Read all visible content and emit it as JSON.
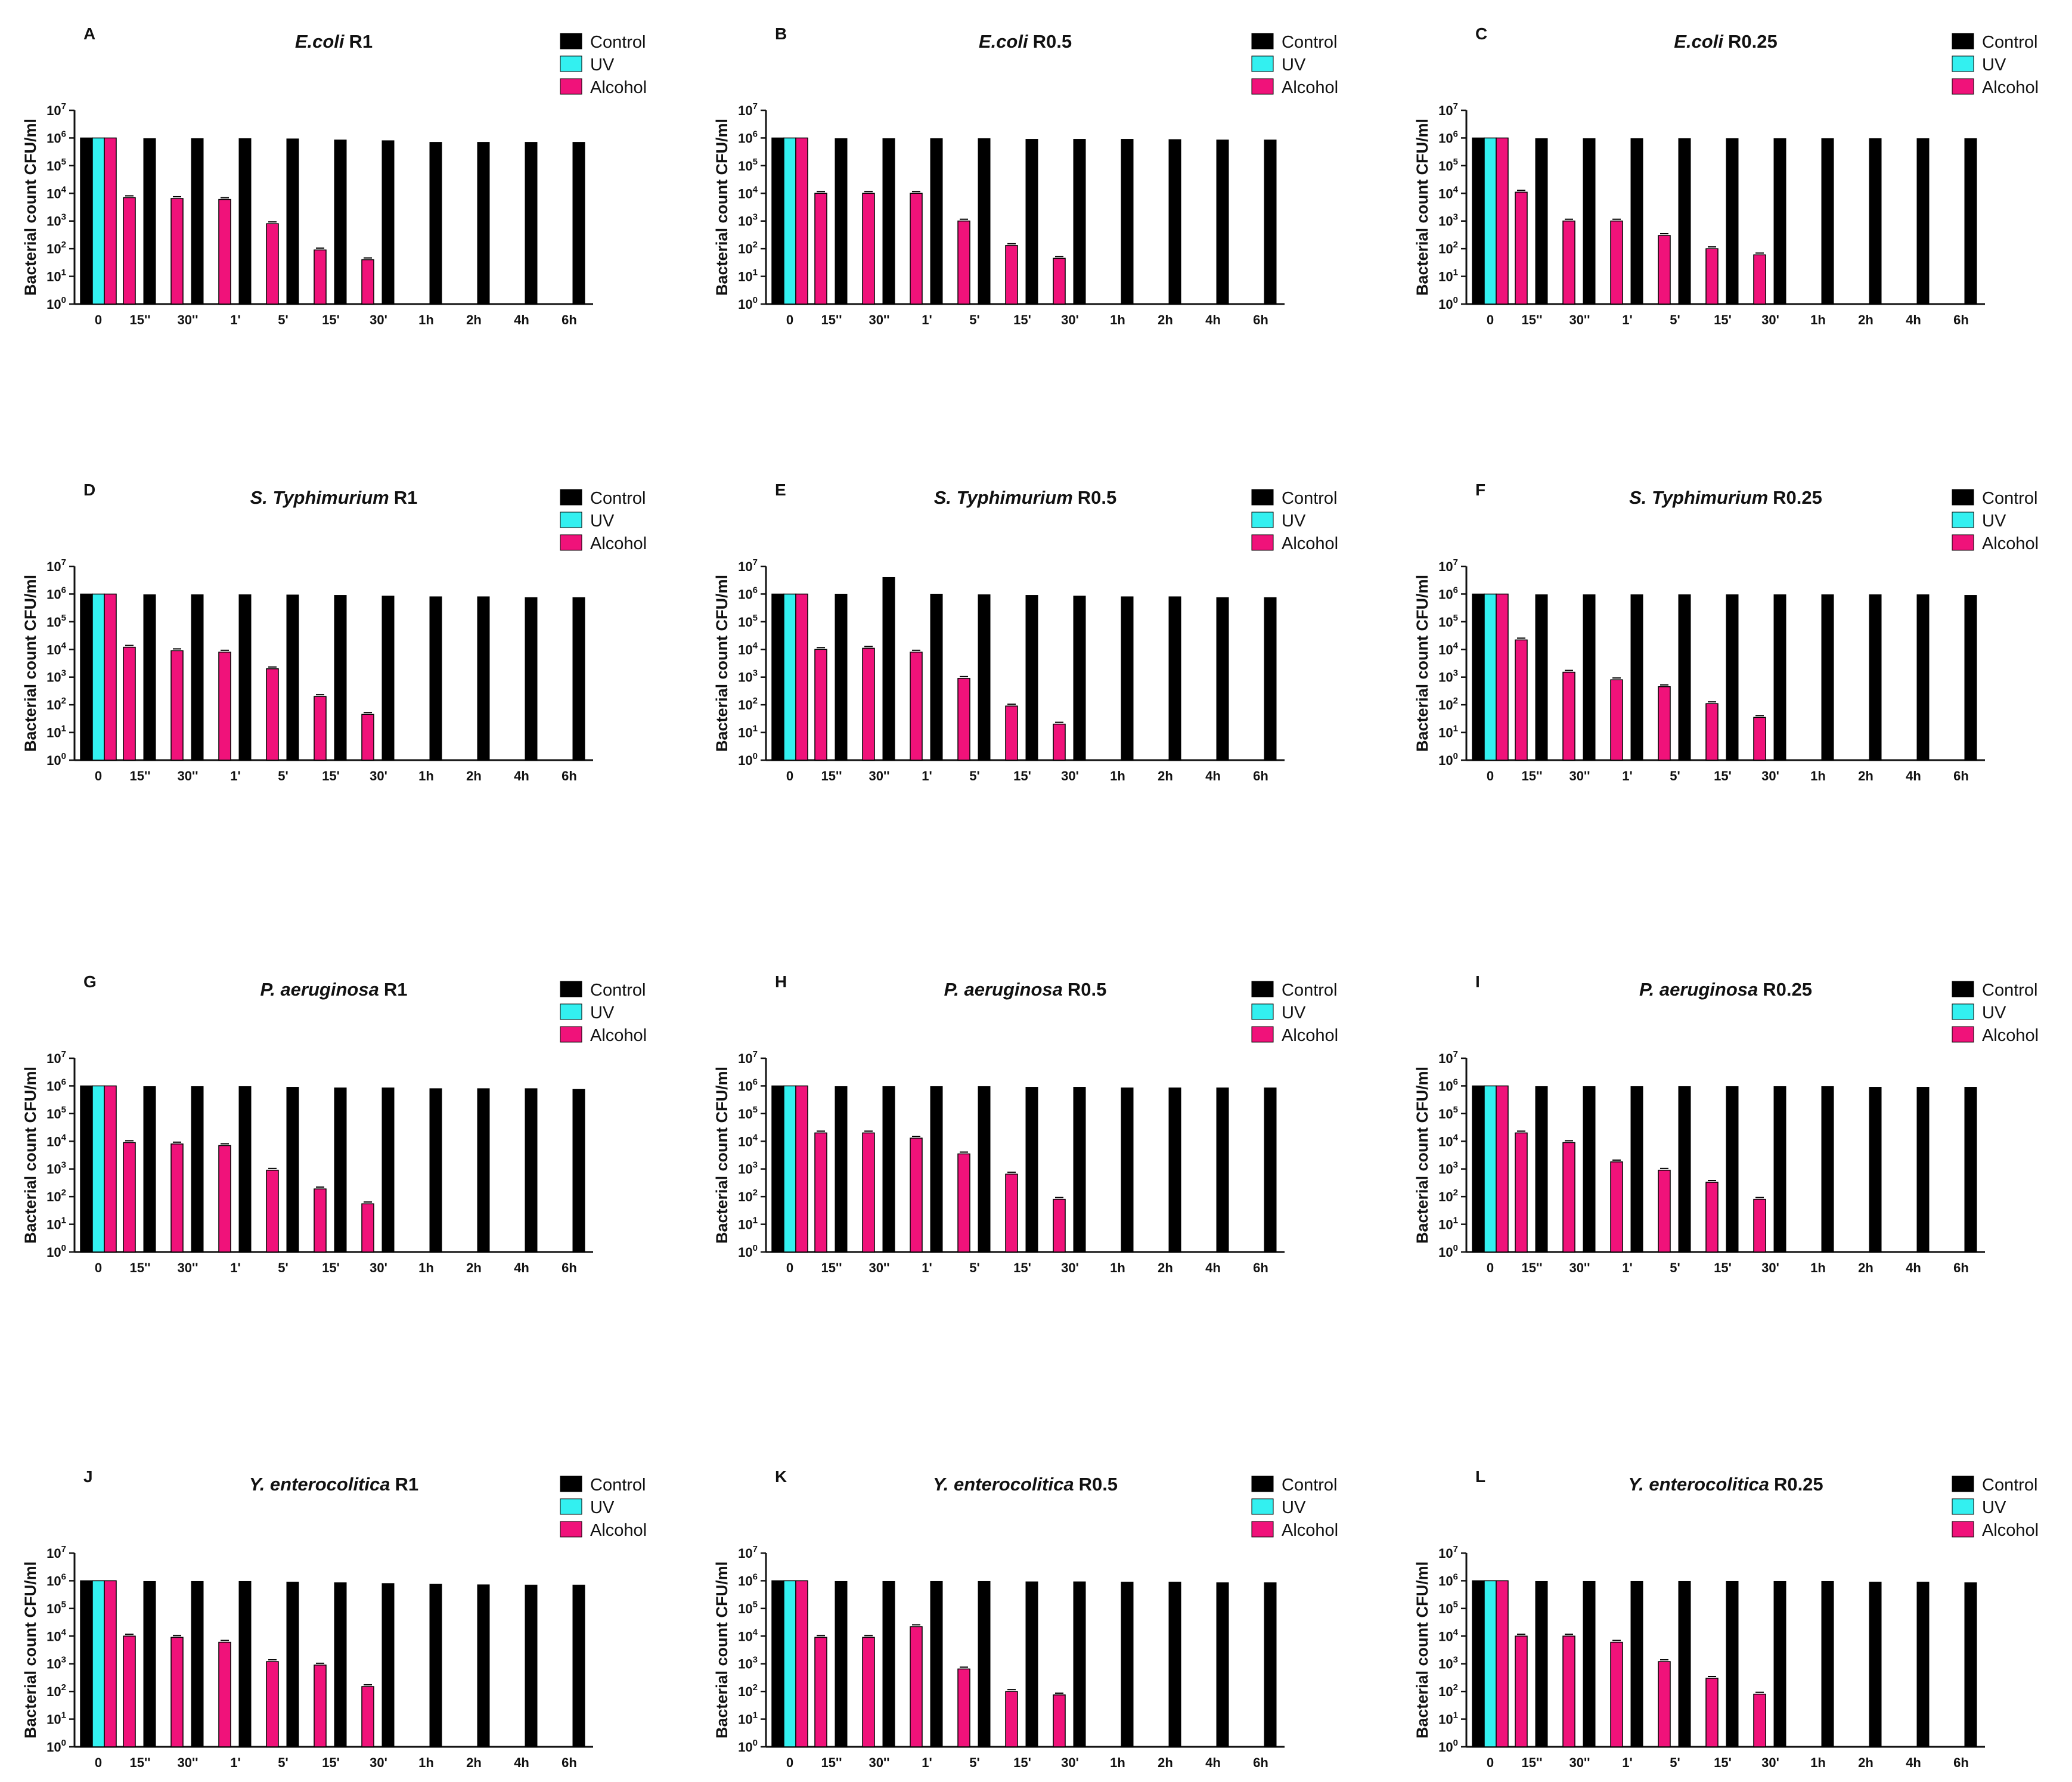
{
  "colors": {
    "control": "#000000",
    "uv": "#33f0f0",
    "alcohol": "#f0127a",
    "axis": "#111111"
  },
  "common": {
    "categories": [
      "0",
      "15''",
      "30''",
      "1'",
      "5'",
      "15'",
      "30'",
      "1h",
      "2h",
      "4h",
      "6h"
    ],
    "ylabel": "Bacterial count CFU/ml",
    "ylim": [
      1,
      10000000
    ],
    "yticks": [
      0,
      1,
      2,
      3,
      4,
      5,
      6,
      7
    ],
    "tick_base": "10",
    "legend": [
      "Control",
      "UV",
      "Alcohol"
    ]
  },
  "chart_data": [
    {
      "type": "bar",
      "panel": "A",
      "species": "E.coli",
      "ratio": "R1",
      "series": [
        {
          "name": "Control",
          "values": [
            1000000,
            950000,
            950000,
            950000,
            930000,
            850000,
            800000,
            700000,
            700000,
            700000,
            700000
          ]
        },
        {
          "name": "UV",
          "values": [
            1000000,
            null,
            null,
            null,
            null,
            null,
            null,
            null,
            null,
            null,
            null
          ]
        },
        {
          "name": "Alcohol",
          "values": [
            1000000,
            7000,
            6500,
            6000,
            800,
            90,
            40,
            null,
            null,
            null,
            null
          ]
        }
      ]
    },
    {
      "type": "bar",
      "panel": "B",
      "species": "E.coli",
      "ratio": "R0.5",
      "series": [
        {
          "name": "Control",
          "values": [
            1000000,
            950000,
            950000,
            950000,
            950000,
            900000,
            900000,
            900000,
            880000,
            850000,
            850000
          ]
        },
        {
          "name": "UV",
          "values": [
            1000000,
            null,
            null,
            null,
            null,
            null,
            null,
            null,
            null,
            null,
            null
          ]
        },
        {
          "name": "Alcohol",
          "values": [
            1000000,
            10000,
            10000,
            10000,
            1000,
            130,
            45,
            null,
            null,
            null,
            null
          ]
        }
      ]
    },
    {
      "type": "bar",
      "panel": "C",
      "species": "E.coli",
      "ratio": "R0.25",
      "series": [
        {
          "name": "Control",
          "values": [
            1000000,
            950000,
            950000,
            950000,
            950000,
            950000,
            950000,
            950000,
            950000,
            950000,
            950000
          ]
        },
        {
          "name": "UV",
          "values": [
            1000000,
            null,
            null,
            null,
            null,
            null,
            null,
            null,
            null,
            null,
            null
          ]
        },
        {
          "name": "Alcohol",
          "values": [
            1000000,
            11000,
            1000,
            1000,
            300,
            100,
            60,
            null,
            null,
            null,
            null
          ]
        }
      ]
    },
    {
      "type": "bar",
      "panel": "D",
      "species": "S. Typhimurium",
      "ratio": "R1",
      "series": [
        {
          "name": "Control",
          "values": [
            1000000,
            950000,
            950000,
            950000,
            930000,
            900000,
            850000,
            800000,
            800000,
            750000,
            750000
          ]
        },
        {
          "name": "UV",
          "values": [
            1000000,
            null,
            null,
            null,
            null,
            null,
            null,
            null,
            null,
            null,
            null
          ]
        },
        {
          "name": "Alcohol",
          "values": [
            1000000,
            12000,
            9000,
            8000,
            2000,
            200,
            45,
            null,
            null,
            null,
            null
          ]
        }
      ]
    },
    {
      "type": "bar",
      "panel": "E",
      "species": "S. Typhimurium",
      "ratio": "R0.5",
      "series": [
        {
          "name": "Control",
          "values": [
            1000000,
            1000000,
            4000000,
            1000000,
            950000,
            900000,
            850000,
            800000,
            800000,
            750000,
            750000
          ]
        },
        {
          "name": "UV",
          "values": [
            1000000,
            null,
            null,
            null,
            null,
            null,
            null,
            null,
            null,
            null,
            null
          ]
        },
        {
          "name": "Alcohol",
          "values": [
            1000000,
            10000,
            11000,
            8000,
            900,
            90,
            20,
            null,
            null,
            null,
            null
          ]
        }
      ]
    },
    {
      "type": "bar",
      "panel": "F",
      "species": "S. Typhimurium",
      "ratio": "R0.25",
      "series": [
        {
          "name": "Control",
          "values": [
            1000000,
            950000,
            950000,
            950000,
            950000,
            950000,
            950000,
            950000,
            950000,
            950000,
            900000
          ]
        },
        {
          "name": "UV",
          "values": [
            1000000,
            null,
            null,
            null,
            null,
            null,
            null,
            null,
            null,
            null,
            null
          ]
        },
        {
          "name": "Alcohol",
          "values": [
            1000000,
            22000,
            1500,
            800,
            450,
            110,
            35,
            null,
            null,
            null,
            null
          ]
        }
      ]
    },
    {
      "type": "bar",
      "panel": "G",
      "species": "P. aeruginosa",
      "ratio": "R1",
      "series": [
        {
          "name": "Control",
          "values": [
            1000000,
            950000,
            950000,
            950000,
            900000,
            850000,
            850000,
            800000,
            800000,
            800000,
            750000
          ]
        },
        {
          "name": "UV",
          "values": [
            1000000,
            null,
            null,
            null,
            null,
            null,
            null,
            null,
            null,
            null,
            null
          ]
        },
        {
          "name": "Alcohol",
          "values": [
            1000000,
            9000,
            8000,
            7000,
            900,
            190,
            55,
            null,
            null,
            null,
            null
          ]
        }
      ]
    },
    {
      "type": "bar",
      "panel": "H",
      "species": "P. aeruginosa",
      "ratio": "R0.5",
      "series": [
        {
          "name": "Control",
          "values": [
            1000000,
            950000,
            950000,
            950000,
            950000,
            900000,
            900000,
            850000,
            850000,
            850000,
            850000
          ]
        },
        {
          "name": "UV",
          "values": [
            1000000,
            null,
            null,
            null,
            null,
            null,
            null,
            null,
            null,
            null,
            null
          ]
        },
        {
          "name": "Alcohol",
          "values": [
            1000000,
            20000,
            20000,
            13000,
            3500,
            650,
            80,
            null,
            null,
            null,
            null
          ]
        }
      ]
    },
    {
      "type": "bar",
      "panel": "I",
      "species": "P. aeruginosa",
      "ratio": "R0.25",
      "series": [
        {
          "name": "Control",
          "values": [
            1000000,
            950000,
            950000,
            950000,
            950000,
            950000,
            950000,
            950000,
            900000,
            900000,
            900000
          ]
        },
        {
          "name": "UV",
          "values": [
            1000000,
            null,
            null,
            null,
            null,
            null,
            null,
            null,
            null,
            null,
            null
          ]
        },
        {
          "name": "Alcohol",
          "values": [
            1000000,
            20000,
            9000,
            1800,
            900,
            330,
            80,
            null,
            null,
            null,
            null
          ]
        }
      ]
    },
    {
      "type": "bar",
      "panel": "J",
      "species": "Y. enterocolitica",
      "ratio": "R1",
      "series": [
        {
          "name": "Control",
          "values": [
            1000000,
            950000,
            950000,
            950000,
            900000,
            850000,
            800000,
            750000,
            720000,
            700000,
            700000
          ]
        },
        {
          "name": "UV",
          "values": [
            1000000,
            null,
            null,
            null,
            null,
            null,
            null,
            null,
            null,
            null,
            null
          ]
        },
        {
          "name": "Alcohol",
          "values": [
            1000000,
            10000,
            9000,
            6000,
            1200,
            900,
            150,
            null,
            null,
            null,
            null
          ]
        }
      ]
    },
    {
      "type": "bar",
      "panel": "K",
      "species": "Y. enterocolitica",
      "ratio": "R0.5",
      "series": [
        {
          "name": "Control",
          "values": [
            1000000,
            950000,
            950000,
            950000,
            950000,
            920000,
            920000,
            900000,
            900000,
            850000,
            850000
          ]
        },
        {
          "name": "UV",
          "values": [
            1000000,
            null,
            null,
            null,
            null,
            null,
            null,
            null,
            null,
            null,
            null
          ]
        },
        {
          "name": "Alcohol",
          "values": [
            1000000,
            9000,
            9000,
            22000,
            650,
            100,
            75,
            null,
            null,
            null,
            null
          ]
        }
      ]
    },
    {
      "type": "bar",
      "panel": "L",
      "species": "Y. enterocolitica",
      "ratio": "R0.25",
      "series": [
        {
          "name": "Control",
          "values": [
            1000000,
            950000,
            950000,
            950000,
            950000,
            950000,
            950000,
            950000,
            900000,
            900000,
            850000
          ]
        },
        {
          "name": "UV",
          "values": [
            1000000,
            null,
            null,
            null,
            null,
            null,
            null,
            null,
            null,
            null,
            null
          ]
        },
        {
          "name": "Alcohol",
          "values": [
            1000000,
            10000,
            10000,
            6000,
            1200,
            300,
            80,
            null,
            null,
            null,
            null
          ]
        }
      ]
    }
  ]
}
